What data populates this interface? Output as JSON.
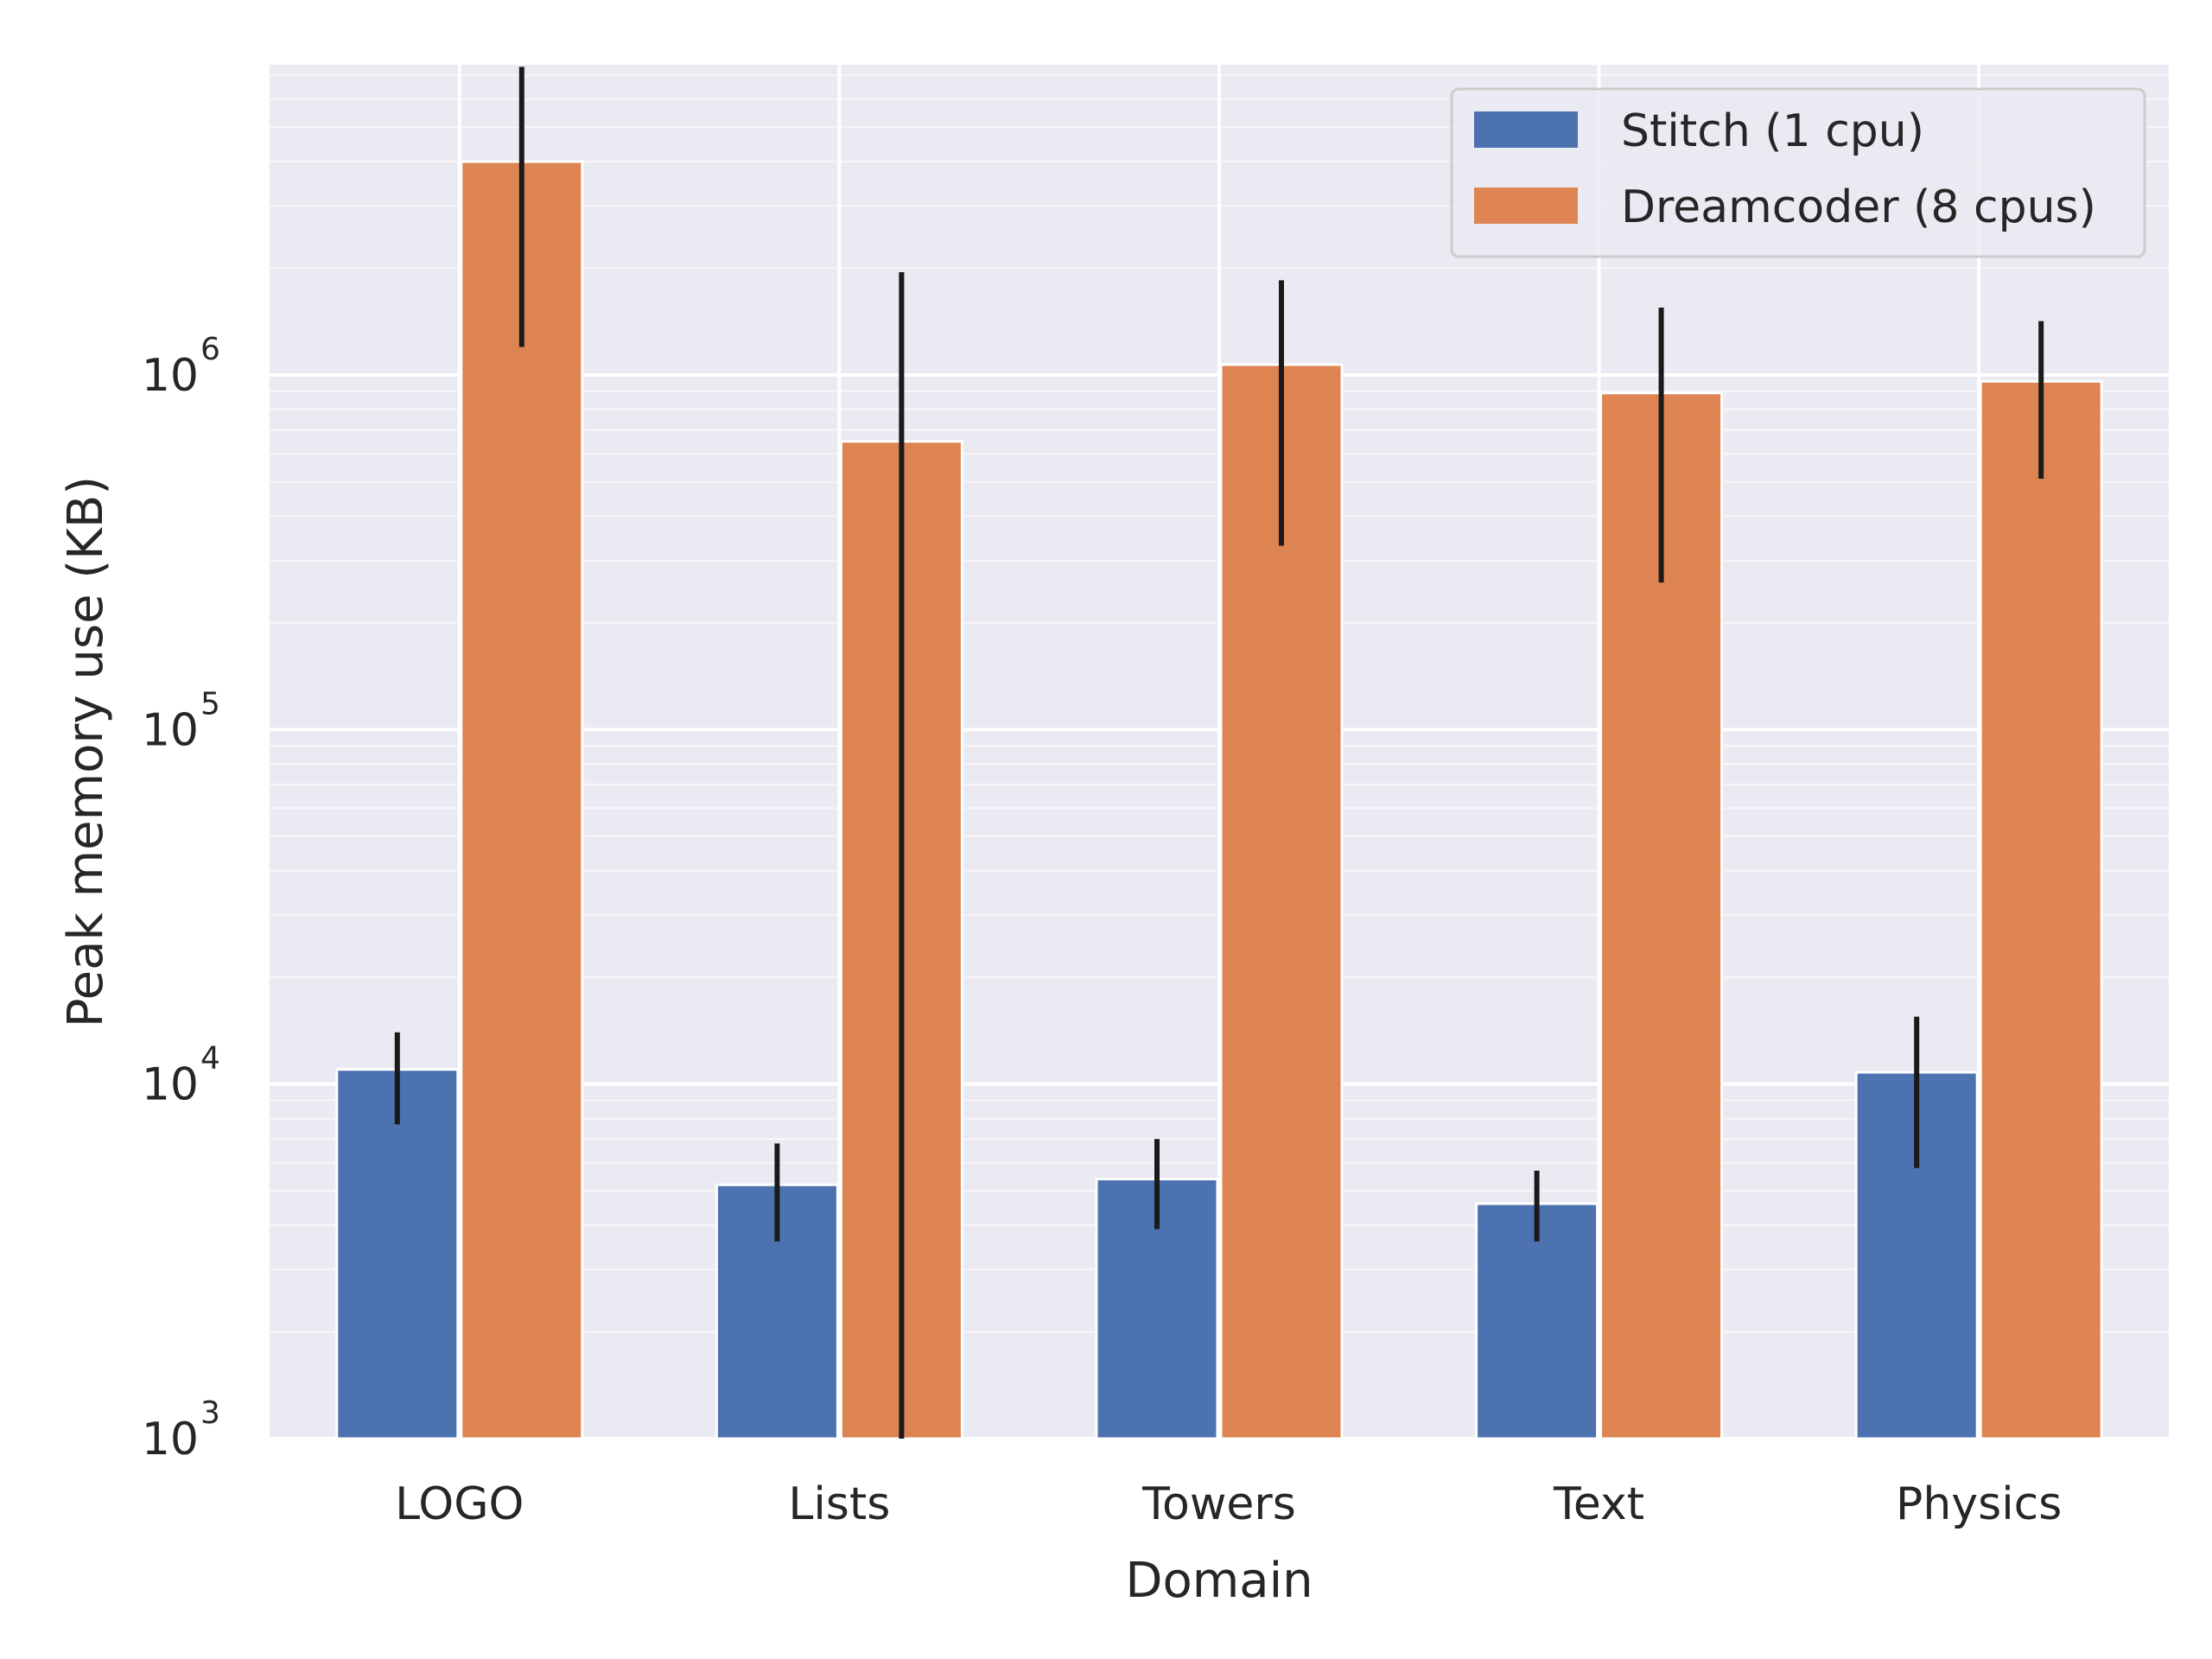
{
  "chart_data": {
    "type": "bar",
    "categories": [
      "LOGO",
      "Lists",
      "Towers",
      "Text",
      "Physics"
    ],
    "xlabel": "Domain",
    "ylabel": "Peak memory use (KB)",
    "yscale": "log",
    "ylim": [
      1000,
      7500000
    ],
    "yticks": [
      {
        "value": 1000,
        "base": "10",
        "exp": "3"
      },
      {
        "value": 10000,
        "base": "10",
        "exp": "4"
      },
      {
        "value": 100000,
        "base": "10",
        "exp": "5"
      },
      {
        "value": 1000000,
        "base": "10",
        "exp": "6"
      }
    ],
    "grid": true,
    "legend_position": "top-right",
    "series": [
      {
        "name": "Stitch (1 cpu)",
        "color": "#4c72b0",
        "values": [
          11000,
          5200,
          5400,
          4600,
          10800
        ],
        "err_low": [
          7700,
          3600,
          3900,
          3600,
          5800
        ],
        "err_high": [
          14000,
          6800,
          7000,
          5700,
          15500
        ]
      },
      {
        "name": "Dreamcoder (8 cpus)",
        "color": "#dd8452",
        "values": [
          4000000,
          650000,
          1070000,
          890000,
          960000
        ],
        "err_low": [
          1200000,
          1000,
          330000,
          260000,
          510000
        ],
        "err_high": [
          7400000,
          1950000,
          1850000,
          1550000,
          1420000
        ]
      }
    ]
  }
}
